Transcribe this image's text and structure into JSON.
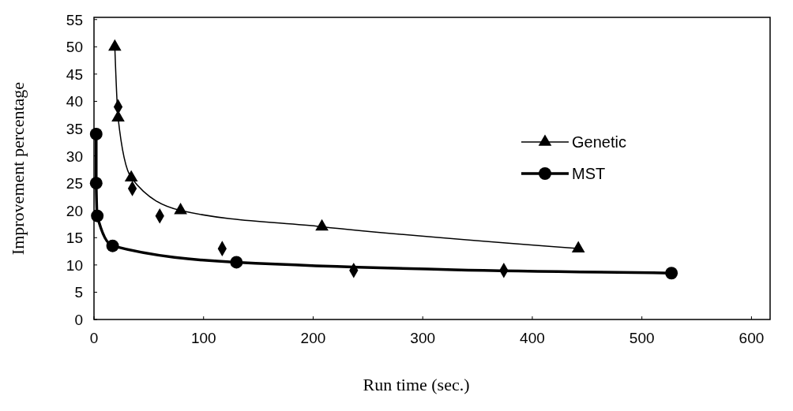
{
  "chart_data": {
    "type": "line",
    "xlabel": "Run time (sec.)",
    "ylabel": "Improvement percentage",
    "xlim": [
      0,
      617
    ],
    "xticks": [
      0,
      100,
      200,
      300,
      400,
      500,
      600
    ],
    "ylim": [
      0,
      55.4
    ],
    "yticks": [
      0,
      5,
      10,
      15,
      20,
      25,
      30,
      35,
      40,
      45,
      50,
      55
    ],
    "grid": false,
    "legend": "right",
    "series": [
      {
        "type": "scatter",
        "marker": "diamond",
        "color": "#000000",
        "x": [
          22,
          35,
          60,
          117,
          237,
          374
        ],
        "values": [
          39,
          24,
          19,
          13,
          9,
          9
        ]
      },
      {
        "name": "Genetic",
        "marker": "triangle",
        "color": "#000000",
        "x": [
          19,
          22,
          34,
          79,
          208,
          442
        ],
        "values": [
          50,
          37,
          26,
          20,
          17,
          13
        ]
      },
      {
        "name": "MST",
        "marker": "circle",
        "color": "#000000",
        "x": [
          2,
          2,
          3,
          17,
          130,
          527
        ],
        "values": [
          34,
          25,
          19,
          13.5,
          10.5,
          8.5
        ]
      }
    ]
  }
}
